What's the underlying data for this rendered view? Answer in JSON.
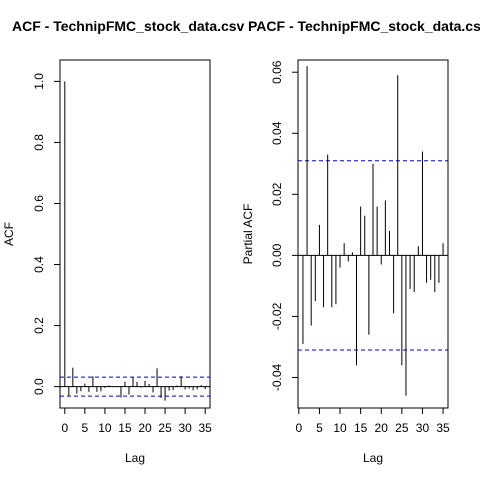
{
  "figure": {
    "background": "#ffffff"
  },
  "chart_data": [
    {
      "type": "bar",
      "subtype": "acf",
      "title": "ACF - TechnipFMC_stock_data.csv",
      "xlabel": "Lag",
      "ylabel": "ACF",
      "xlim": [
        -1.2,
        36.2
      ],
      "ylim": [
        -0.07,
        1.07
      ],
      "x_ticks": [
        0,
        5,
        10,
        15,
        20,
        25,
        30,
        35
      ],
      "y_ticks": [
        0.0,
        0.2,
        0.4,
        0.6,
        0.8,
        1.0
      ],
      "y_tick_labels": [
        "0.0",
        "0.2",
        "0.4",
        "0.6",
        "0.8",
        "1.0"
      ],
      "grid": false,
      "legend": "none",
      "bar_color": "#000000",
      "ci_color": "#0000cc",
      "ci": [
        0.031,
        -0.031
      ],
      "lags": [
        0,
        1,
        2,
        3,
        4,
        5,
        6,
        7,
        8,
        9,
        10,
        11,
        12,
        13,
        14,
        15,
        16,
        17,
        18,
        19,
        20,
        21,
        22,
        23,
        24,
        25,
        26,
        27,
        28,
        29,
        30,
        31,
        32,
        33,
        34,
        35
      ],
      "values": [
        1.0,
        -0.03,
        0.062,
        -0.023,
        -0.015,
        0.01,
        -0.017,
        0.034,
        -0.017,
        -0.015,
        -0.004,
        0.004,
        -0.002,
        0.002,
        -0.036,
        0.016,
        -0.026,
        0.031,
        0.016,
        -0.003,
        0.019,
        0.009,
        -0.019,
        0.06,
        -0.037,
        -0.046,
        -0.013,
        -0.011,
        0.004,
        0.034,
        -0.009,
        -0.006,
        -0.012,
        -0.009,
        0.005,
        -0.008
      ]
    },
    {
      "type": "bar",
      "subtype": "pacf",
      "title": "PACF - TechnipFMC_stock_data.csv",
      "xlabel": "Lag",
      "ylabel": "Partial ACF",
      "xlim": [
        -0.2,
        36.2
      ],
      "ylim": [
        -0.05,
        0.064
      ],
      "x_ticks": [
        0,
        5,
        10,
        15,
        20,
        25,
        30,
        35
      ],
      "y_ticks": [
        -0.04,
        -0.02,
        0.0,
        0.02,
        0.04,
        0.06
      ],
      "y_tick_labels": [
        "-0.04",
        "-0.02",
        "0.00",
        "0.02",
        "0.04",
        "0.06"
      ],
      "grid": false,
      "legend": "none",
      "bar_color": "#000000",
      "ci_color": "#0000cc",
      "ci": [
        0.031,
        -0.031
      ],
      "lags": [
        1,
        2,
        3,
        4,
        5,
        6,
        7,
        8,
        9,
        10,
        11,
        12,
        13,
        14,
        15,
        16,
        17,
        18,
        19,
        20,
        21,
        22,
        23,
        24,
        25,
        26,
        27,
        28,
        29,
        30,
        31,
        32,
        33,
        34,
        35
      ],
      "values": [
        -0.029,
        0.062,
        -0.023,
        -0.015,
        0.01,
        -0.017,
        0.033,
        -0.017,
        -0.016,
        -0.004,
        0.004,
        -0.002,
        0.001,
        -0.036,
        0.016,
        0.013,
        -0.026,
        0.03,
        0.016,
        -0.003,
        0.018,
        0.008,
        -0.019,
        0.059,
        -0.036,
        -0.046,
        -0.011,
        -0.012,
        0.003,
        0.034,
        -0.009,
        -0.008,
        -0.012,
        -0.009,
        0.004
      ]
    }
  ]
}
